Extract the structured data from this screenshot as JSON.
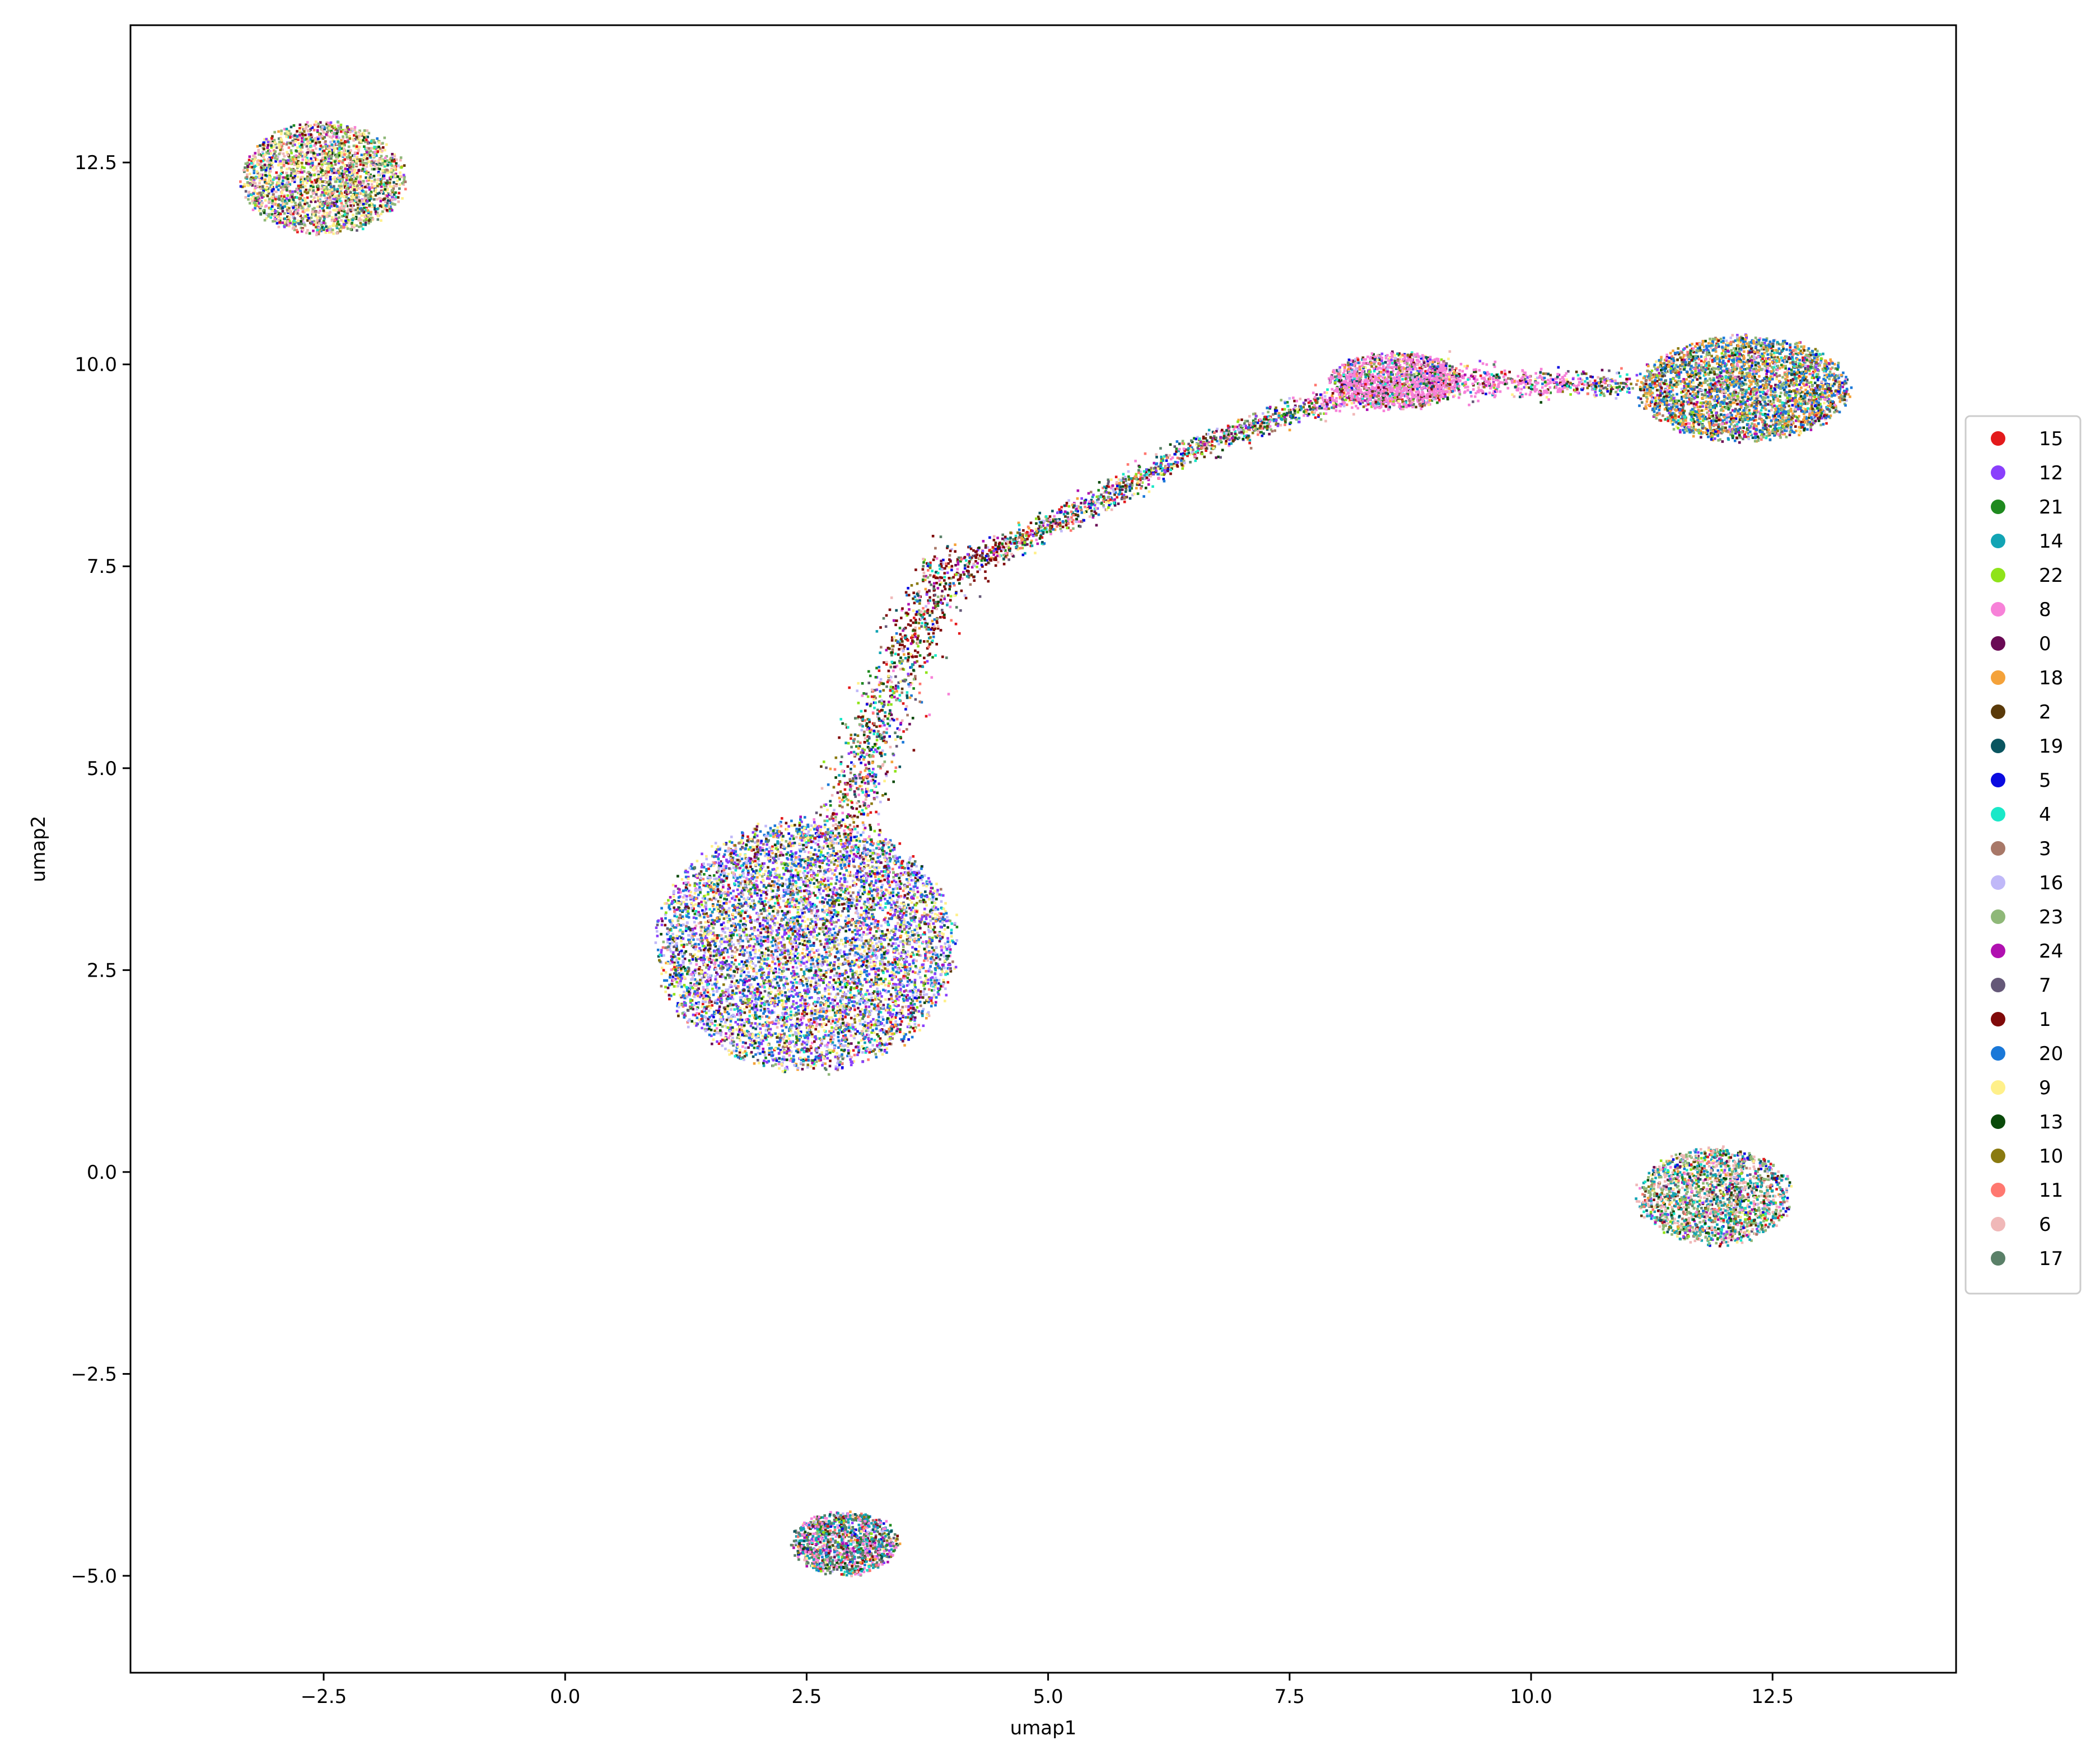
{
  "chart_data": {
    "type": "scatter",
    "title": "",
    "xlabel": "umap1",
    "ylabel": "umap2",
    "xlim": [
      -4.5,
      14.4
    ],
    "ylim": [
      -6.2,
      14.2
    ],
    "xticks": [
      -2.5,
      0.0,
      2.5,
      5.0,
      7.5,
      10.0,
      12.5
    ],
    "xtick_labels": [
      "−2.5",
      "0.0",
      "2.5",
      "5.0",
      "7.5",
      "10.0",
      "12.5"
    ],
    "yticks": [
      -5.0,
      -2.5,
      0.0,
      2.5,
      5.0,
      7.5,
      10.0,
      12.5
    ],
    "ytick_labels": [
      "−5.0",
      "−2.5",
      "0.0",
      "2.5",
      "5.0",
      "7.5",
      "10.0",
      "12.5"
    ],
    "grid": false,
    "legend_position": "right-outside",
    "legend": [
      {
        "label": "15",
        "color": "#e31a1c"
      },
      {
        "label": "12",
        "color": "#8a3ffc"
      },
      {
        "label": "21",
        "color": "#1f8a1f"
      },
      {
        "label": "14",
        "color": "#12a4b4"
      },
      {
        "label": "22",
        "color": "#8fe31a"
      },
      {
        "label": "8",
        "color": "#f781d8"
      },
      {
        "label": "0",
        "color": "#6a0a55"
      },
      {
        "label": "18",
        "color": "#f4a23a"
      },
      {
        "label": "2",
        "color": "#5a3a0a"
      },
      {
        "label": "19",
        "color": "#0a5560"
      },
      {
        "label": "5",
        "color": "#0a0ae0"
      },
      {
        "label": "4",
        "color": "#1ae8c8"
      },
      {
        "label": "3",
        "color": "#a87868"
      },
      {
        "label": "16",
        "color": "#c0b8f8"
      },
      {
        "label": "23",
        "color": "#8fb878"
      },
      {
        "label": "24",
        "color": "#b010b0"
      },
      {
        "label": "7",
        "color": "#655878"
      },
      {
        "label": "1",
        "color": "#800a0a"
      },
      {
        "label": "20",
        "color": "#1a78d8"
      },
      {
        "label": "9",
        "color": "#fff08a"
      },
      {
        "label": "13",
        "color": "#0a4a0a"
      },
      {
        "label": "10",
        "color": "#8a7a10"
      },
      {
        "label": "11",
        "color": "#ff7870"
      },
      {
        "label": "6",
        "color": "#f0b8b8"
      },
      {
        "label": "17",
        "color": "#5a8068"
      }
    ],
    "clusters": [
      {
        "center": [
          2.5,
          2.8
        ],
        "radius": [
          1.55,
          1.55
        ],
        "points": 7000,
        "tint": [
          "#8a3ffc",
          "#1a78d8",
          "#c0b8f8",
          "#fff08a"
        ]
      },
      {
        "center": [
          -2.5,
          12.3
        ],
        "radius": [
          0.85,
          0.7
        ],
        "points": 2400,
        "tint": [
          "#fff08a",
          "#8fb878",
          "#f0b8b8"
        ]
      },
      {
        "center": [
          12.2,
          9.7
        ],
        "radius": [
          1.1,
          0.65
        ],
        "points": 3200,
        "tint": [
          "#8fb878",
          "#1a78d8",
          "#f4a23a"
        ]
      },
      {
        "center": [
          11.9,
          -0.3
        ],
        "radius": [
          0.8,
          0.6
        ],
        "points": 1800,
        "tint": [
          "#12a4b4",
          "#8fb878",
          "#f0b8b8"
        ]
      },
      {
        "center": [
          2.9,
          -4.6
        ],
        "radius": [
          0.55,
          0.4
        ],
        "points": 1200,
        "tint": [
          "#f781d8",
          "#5a8068",
          "#12a4b4"
        ]
      },
      {
        "center": [
          8.6,
          9.8
        ],
        "radius": [
          0.7,
          0.35
        ],
        "points": 1300,
        "tint": [
          "#f781d8"
        ]
      }
    ],
    "bridge_path": [
      [
        2.9,
        4.2
      ],
      [
        3.2,
        5.5
      ],
      [
        3.6,
        6.6
      ],
      [
        3.9,
        7.4
      ],
      [
        4.5,
        7.7
      ],
      [
        5.5,
        8.3
      ],
      [
        6.5,
        8.95
      ],
      [
        7.5,
        9.4
      ],
      [
        8.3,
        9.7
      ],
      [
        9.2,
        9.8
      ],
      [
        10.2,
        9.75
      ],
      [
        11.0,
        9.75
      ]
    ],
    "bridge_points": 3200
  }
}
